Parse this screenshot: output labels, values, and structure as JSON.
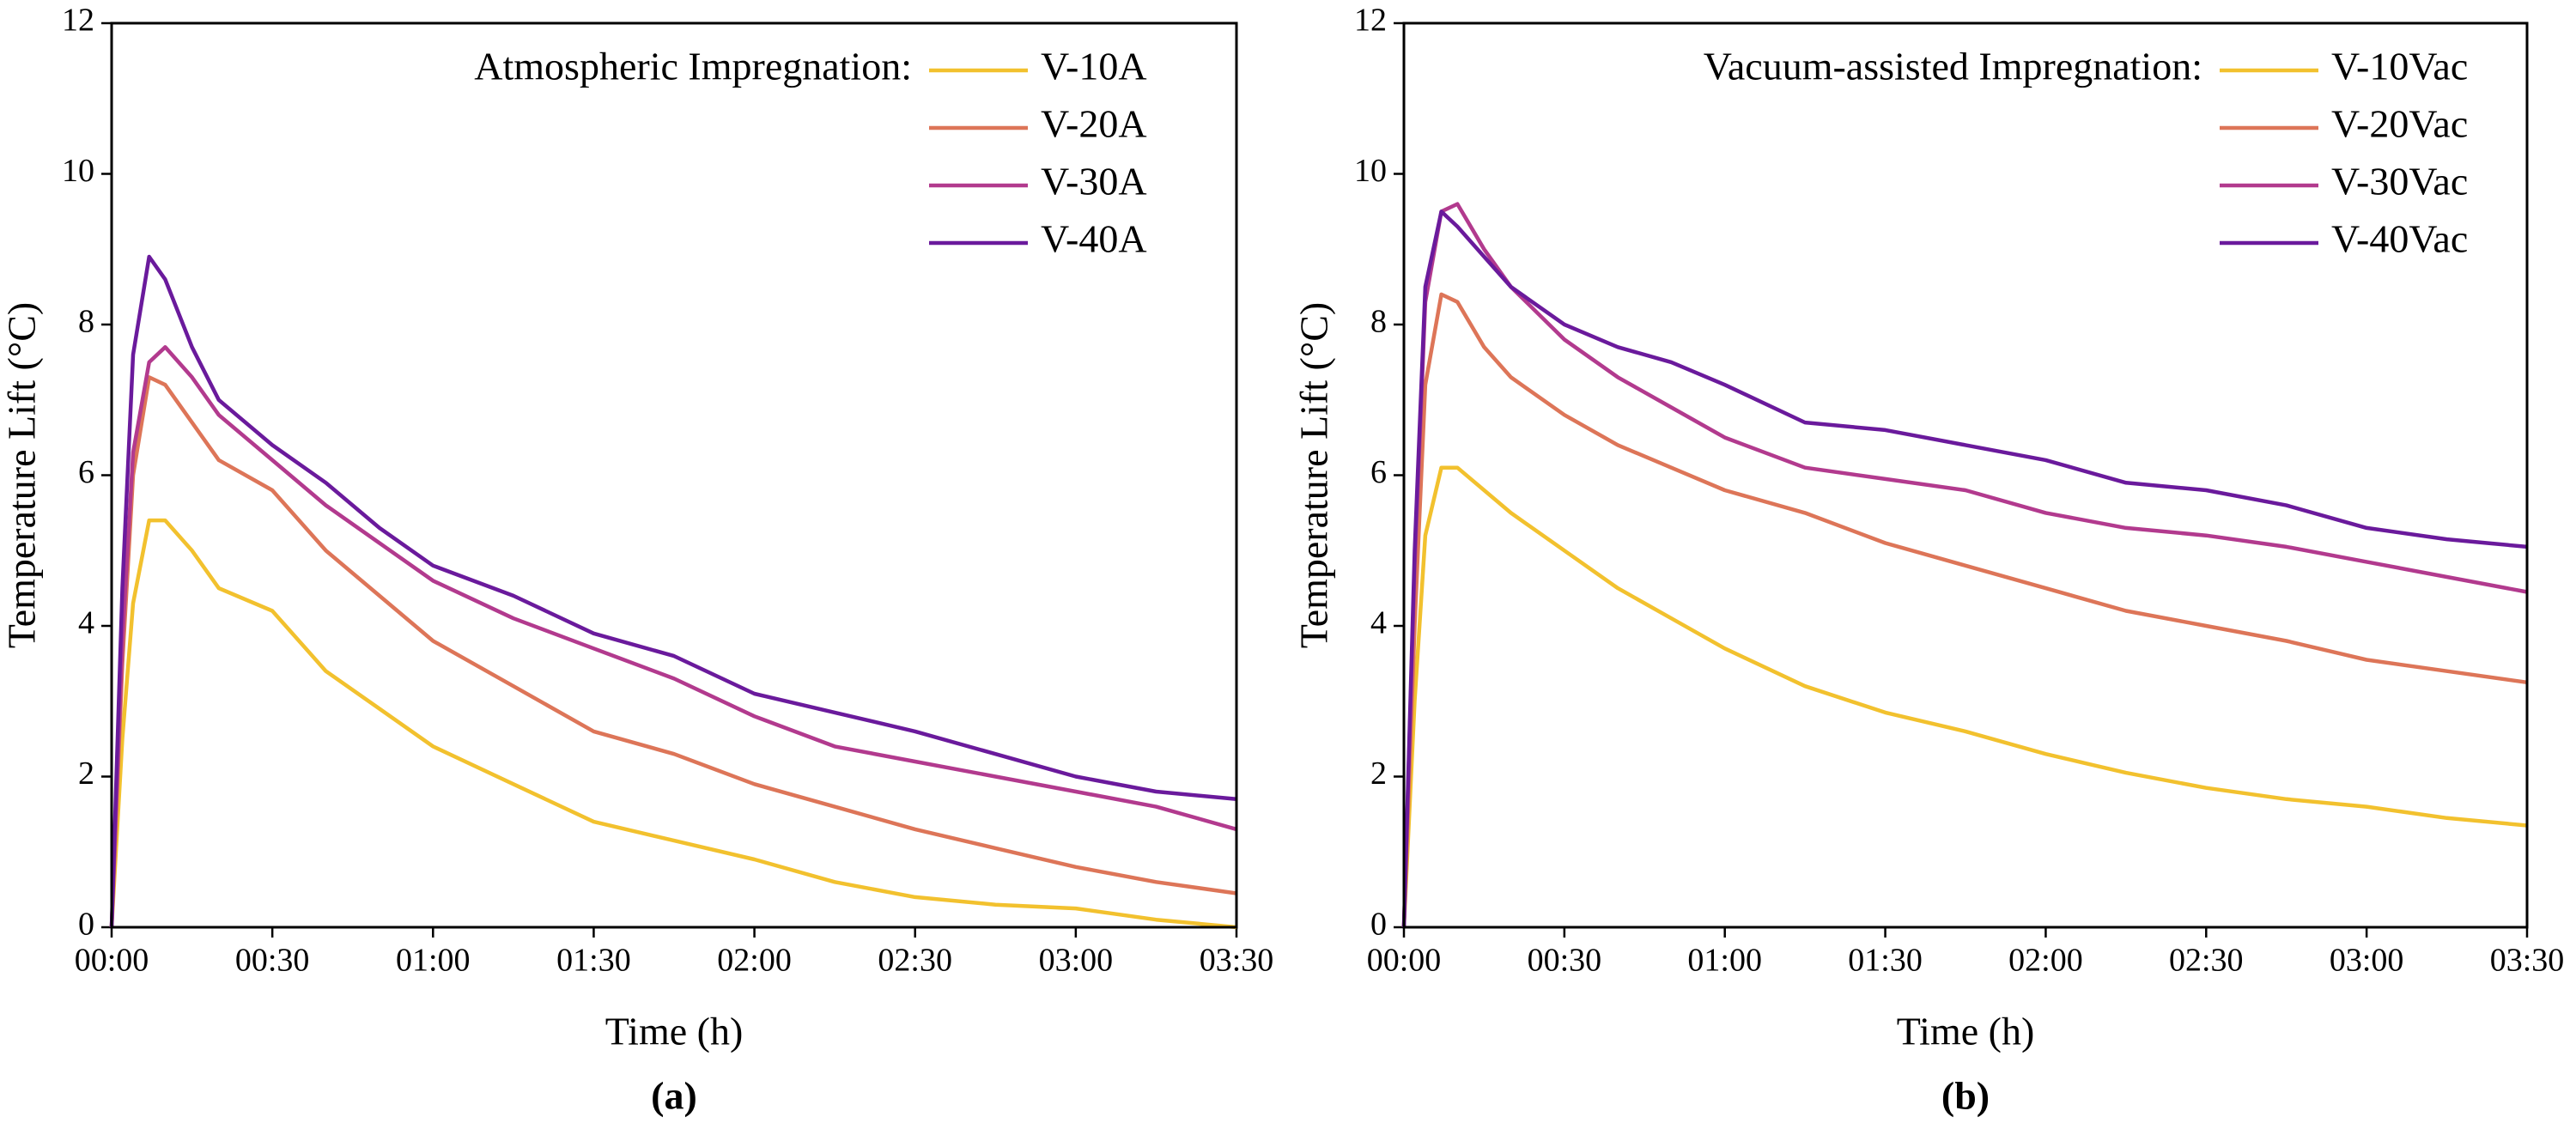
{
  "chart_data": [
    {
      "type": "line",
      "panel_label": "(a)",
      "xlabel": "Time (h)",
      "ylabel": "Temperature Lift (°C)",
      "legend_title": "Atmospheric Impregnation:",
      "x": [
        0,
        2,
        4,
        7,
        10,
        15,
        20,
        30,
        40,
        50,
        60,
        75,
        90,
        105,
        120,
        135,
        150,
        165,
        180,
        195,
        210
      ],
      "xlim": [
        0,
        210
      ],
      "xticks": [
        {
          "value": 0,
          "label": "00:00"
        },
        {
          "value": 30,
          "label": "00:30"
        },
        {
          "value": 60,
          "label": "01:00"
        },
        {
          "value": 90,
          "label": "01:30"
        },
        {
          "value": 120,
          "label": "02:00"
        },
        {
          "value": 150,
          "label": "02:30"
        },
        {
          "value": 180,
          "label": "03:00"
        },
        {
          "value": 210,
          "label": "03:30"
        }
      ],
      "ylim": [
        0,
        12
      ],
      "yticks": [
        0,
        2,
        4,
        6,
        8,
        10,
        12
      ],
      "series": [
        {
          "name": "V-10A",
          "color": "#F2C12E",
          "values": [
            0,
            2.5,
            4.3,
            5.4,
            5.4,
            5.0,
            4.5,
            4.2,
            3.4,
            2.9,
            2.4,
            1.9,
            1.4,
            1.15,
            0.9,
            0.6,
            0.4,
            0.3,
            0.25,
            0.1,
            0
          ]
        },
        {
          "name": "V-20A",
          "color": "#DD7558",
          "values": [
            0,
            3.5,
            6.0,
            7.3,
            7.2,
            6.7,
            6.2,
            5.8,
            5.0,
            4.4,
            3.8,
            3.2,
            2.6,
            2.3,
            1.9,
            1.6,
            1.3,
            1.05,
            0.8,
            0.6,
            0.45
          ]
        },
        {
          "name": "V-30A",
          "color": "#B23A8E",
          "values": [
            0,
            3.8,
            6.3,
            7.5,
            7.7,
            7.3,
            6.8,
            6.2,
            5.6,
            5.1,
            4.6,
            4.1,
            3.7,
            3.3,
            2.8,
            2.4,
            2.2,
            2.0,
            1.8,
            1.6,
            1.3
          ]
        },
        {
          "name": "V-40A",
          "color": "#6A1A9C",
          "values": [
            0,
            4.5,
            7.6,
            8.9,
            8.6,
            7.7,
            7.0,
            6.4,
            5.9,
            5.3,
            4.8,
            4.4,
            3.9,
            3.6,
            3.1,
            2.85,
            2.6,
            2.3,
            2.0,
            1.8,
            1.7
          ]
        }
      ]
    },
    {
      "type": "line",
      "panel_label": "(b)",
      "xlabel": "Time (h)",
      "ylabel": "Temperature Lift (°C)",
      "legend_title": "Vacuum-assisted Impregnation:",
      "x": [
        0,
        2,
        4,
        7,
        10,
        15,
        20,
        30,
        40,
        50,
        60,
        75,
        90,
        105,
        120,
        135,
        150,
        165,
        180,
        195,
        210
      ],
      "xlim": [
        0,
        210
      ],
      "xticks": [
        {
          "value": 0,
          "label": "00:00"
        },
        {
          "value": 30,
          "label": "00:30"
        },
        {
          "value": 60,
          "label": "01:00"
        },
        {
          "value": 90,
          "label": "01:30"
        },
        {
          "value": 120,
          "label": "02:00"
        },
        {
          "value": 150,
          "label": "02:30"
        },
        {
          "value": 180,
          "label": "03:00"
        },
        {
          "value": 210,
          "label": "03:30"
        }
      ],
      "ylim": [
        0,
        12
      ],
      "yticks": [
        0,
        2,
        4,
        6,
        8,
        10,
        12
      ],
      "series": [
        {
          "name": "V-10Vac",
          "color": "#F2C12E",
          "values": [
            0,
            3,
            5.2,
            6.1,
            6.1,
            5.8,
            5.5,
            5.0,
            4.5,
            4.1,
            3.7,
            3.2,
            2.85,
            2.6,
            2.3,
            2.05,
            1.85,
            1.7,
            1.6,
            1.45,
            1.35
          ]
        },
        {
          "name": "V-20Vac",
          "color": "#DD7558",
          "values": [
            0,
            4,
            7.2,
            8.4,
            8.3,
            7.7,
            7.3,
            6.8,
            6.4,
            6.1,
            5.8,
            5.5,
            5.1,
            4.8,
            4.5,
            4.2,
            4.0,
            3.8,
            3.55,
            3.4,
            3.25
          ]
        },
        {
          "name": "V-30Vac",
          "color": "#B23A8E",
          "values": [
            0,
            4.8,
            8.3,
            9.5,
            9.6,
            9.0,
            8.5,
            7.8,
            7.3,
            6.9,
            6.5,
            6.1,
            5.95,
            5.8,
            5.5,
            5.3,
            5.2,
            5.05,
            4.85,
            4.65,
            4.45
          ]
        },
        {
          "name": "V-40Vac",
          "color": "#6A1A9C",
          "values": [
            0,
            5,
            8.5,
            9.5,
            9.3,
            8.9,
            8.5,
            8.0,
            7.7,
            7.5,
            7.2,
            6.7,
            6.6,
            6.4,
            6.2,
            5.9,
            5.8,
            5.6,
            5.3,
            5.15,
            5.05
          ]
        }
      ]
    }
  ]
}
